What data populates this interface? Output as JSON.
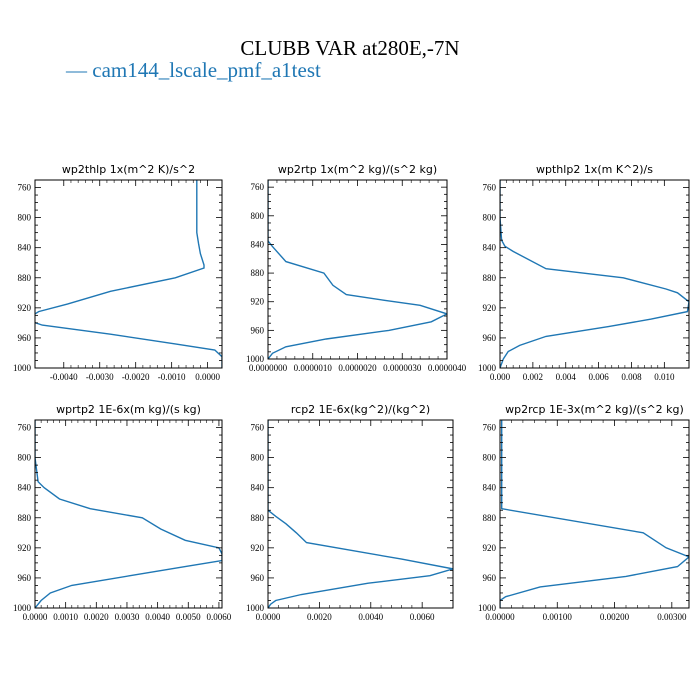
{
  "title": "CLUBB VAR at280E,-7N",
  "legend": {
    "marker": "—",
    "label": "cam144_lscale_pmf_a1test",
    "color": "#1f77b4"
  },
  "y_ticks": [
    "760",
    "800",
    "840",
    "880",
    "920",
    "960",
    "1000"
  ],
  "chart_data": [
    {
      "type": "line",
      "title": "wp2thlp   1x(m^2 K)/s^2",
      "xlim": [
        -0.0048,
        0.0004
      ],
      "ylim": [
        1000,
        750
      ],
      "x_ticks": [
        -0.004,
        -0.003,
        -0.002,
        -0.001,
        0
      ],
      "x_tick_labels": [
        "-0.0040",
        "-0.0030",
        "-0.0020",
        "-0.0010",
        "0.0000"
      ],
      "series": [
        {
          "color": "#1f77b4",
          "x": [
            -0.0003,
            -0.0003,
            -0.0003,
            -0.00025,
            -0.0002,
            -0.0001,
            -0.0001,
            -0.0009,
            -0.0027,
            -0.0039,
            -0.0047,
            -0.0048,
            -0.0049,
            -0.0046,
            -0.0027,
            -0.0009,
            0.0002,
            0.0004,
            0.0004
          ],
          "y": [
            750,
            800,
            820,
            835,
            848,
            863,
            867,
            880,
            898,
            915,
            925,
            928,
            938,
            943,
            955,
            968,
            976,
            985,
            1000
          ]
        }
      ]
    },
    {
      "type": "line",
      "title": "wp2rtp   1x(m^2 kg)/(s^2 kg)",
      "xlim": [
        0,
        4e-06
      ],
      "ylim": [
        1000,
        750
      ],
      "x_ticks": [
        0,
        1e-06,
        2e-06,
        3e-06,
        4e-06
      ],
      "x_tick_labels": [
        "0.0000000",
        "0.0000010",
        "0.0000020",
        "0.0000030",
        "0.0000040"
      ],
      "series": [
        {
          "color": "#1f77b4",
          "x": [
            0,
            0,
            0,
            1e-07,
            4e-07,
            1.25e-06,
            1.45e-06,
            1.75e-06,
            2.6e-06,
            3.4e-06,
            4e-06,
            3.65e-06,
            2.7e-06,
            1.3e-06,
            4e-07,
            1e-07,
            0
          ],
          "y": [
            750,
            800,
            835,
            843,
            864,
            880,
            897,
            910,
            918,
            925,
            937,
            948,
            960,
            972,
            983,
            992,
            1000
          ]
        }
      ]
    },
    {
      "type": "line",
      "title": "wpthlp2   1x(m K^2)/s",
      "xlim": [
        0,
        0.0115
      ],
      "ylim": [
        1000,
        750
      ],
      "x_ticks": [
        0,
        0.002,
        0.004,
        0.006,
        0.008,
        0.01
      ],
      "x_tick_labels": [
        "0.000",
        "0.002",
        "0.004",
        "0.006",
        "0.008",
        "0.010"
      ],
      "series": [
        {
          "color": "#1f77b4",
          "x": [
            0,
            0,
            0.0001,
            0.0003,
            0.0008,
            0.0028,
            0.0075,
            0.0101,
            0.0108,
            0.0115,
            0.0114,
            0.0092,
            0.0066,
            0.0028,
            0.0012,
            0.0005,
            0.0002,
            0
          ],
          "y": [
            750,
            800,
            830,
            838,
            845,
            868,
            880,
            895,
            900,
            912,
            925,
            935,
            945,
            958,
            970,
            978,
            988,
            1000
          ]
        }
      ]
    },
    {
      "type": "line",
      "title": "wprtp2   1E-6x(m kg)/(s kg)",
      "xlim": [
        0,
        0.0061
      ],
      "ylim": [
        1000,
        750
      ],
      "x_ticks": [
        0,
        0.001,
        0.002,
        0.003,
        0.004,
        0.005,
        0.006
      ],
      "x_tick_labels": [
        "0.0000",
        "0.0010",
        "0.0020",
        "0.0030",
        "0.0040",
        "0.0050",
        "0.0060"
      ],
      "series": [
        {
          "color": "#1f77b4",
          "x": [
            0,
            0,
            0.0001,
            0.0003,
            0.0008,
            0.0018,
            0.0035,
            0.0041,
            0.0049,
            0.006,
            0.0061,
            0.0061,
            0.0049,
            0.0031,
            0.0012,
            0.0005,
            0.0002,
            0
          ],
          "y": [
            750,
            800,
            832,
            840,
            855,
            868,
            880,
            895,
            910,
            920,
            928,
            937,
            945,
            957,
            970,
            980,
            990,
            1000
          ]
        }
      ]
    },
    {
      "type": "line",
      "title": "rcp2   1E-6x(kg^2)/(kg^2)",
      "xlim": [
        0,
        0.0072
      ],
      "ylim": [
        1000,
        750
      ],
      "x_ticks": [
        0,
        0.002,
        0.004,
        0.006
      ],
      "x_tick_labels": [
        "0.0000",
        "0.0020",
        "0.0040",
        "0.0060"
      ],
      "series": [
        {
          "color": "#1f77b4",
          "x": [
            0,
            0,
            0,
            0.0003,
            0.0007,
            0.0011,
            0.0015,
            0.0052,
            0.0072,
            0.0063,
            0.0039,
            0.0013,
            0.0003,
            0.0001,
            0
          ],
          "y": [
            750,
            800,
            870,
            878,
            888,
            900,
            913,
            935,
            948,
            957,
            967,
            982,
            990,
            995,
            1000
          ]
        }
      ]
    },
    {
      "type": "line",
      "title": "wp2rcp   1E-3x(m^2 kg)/(s^2 kg)",
      "xlim": [
        0,
        0.0033
      ],
      "ylim": [
        1000,
        750
      ],
      "x_ticks": [
        0,
        0.001,
        0.002,
        0.003
      ],
      "x_tick_labels": [
        "0.00000",
        "0.00100",
        "0.00200",
        "0.00300"
      ],
      "series": [
        {
          "color": "#1f77b4",
          "x": [
            3e-05,
            3e-05,
            3e-05,
            3e-05,
            3e-05,
            0.0025,
            0.0029,
            0.0033,
            0.0031,
            0.0022,
            0.0007,
            0.0001,
            0,
            0
          ],
          "y": [
            750,
            800,
            840,
            860,
            868,
            900,
            920,
            932,
            945,
            958,
            972,
            985,
            990,
            1000
          ]
        }
      ]
    }
  ]
}
